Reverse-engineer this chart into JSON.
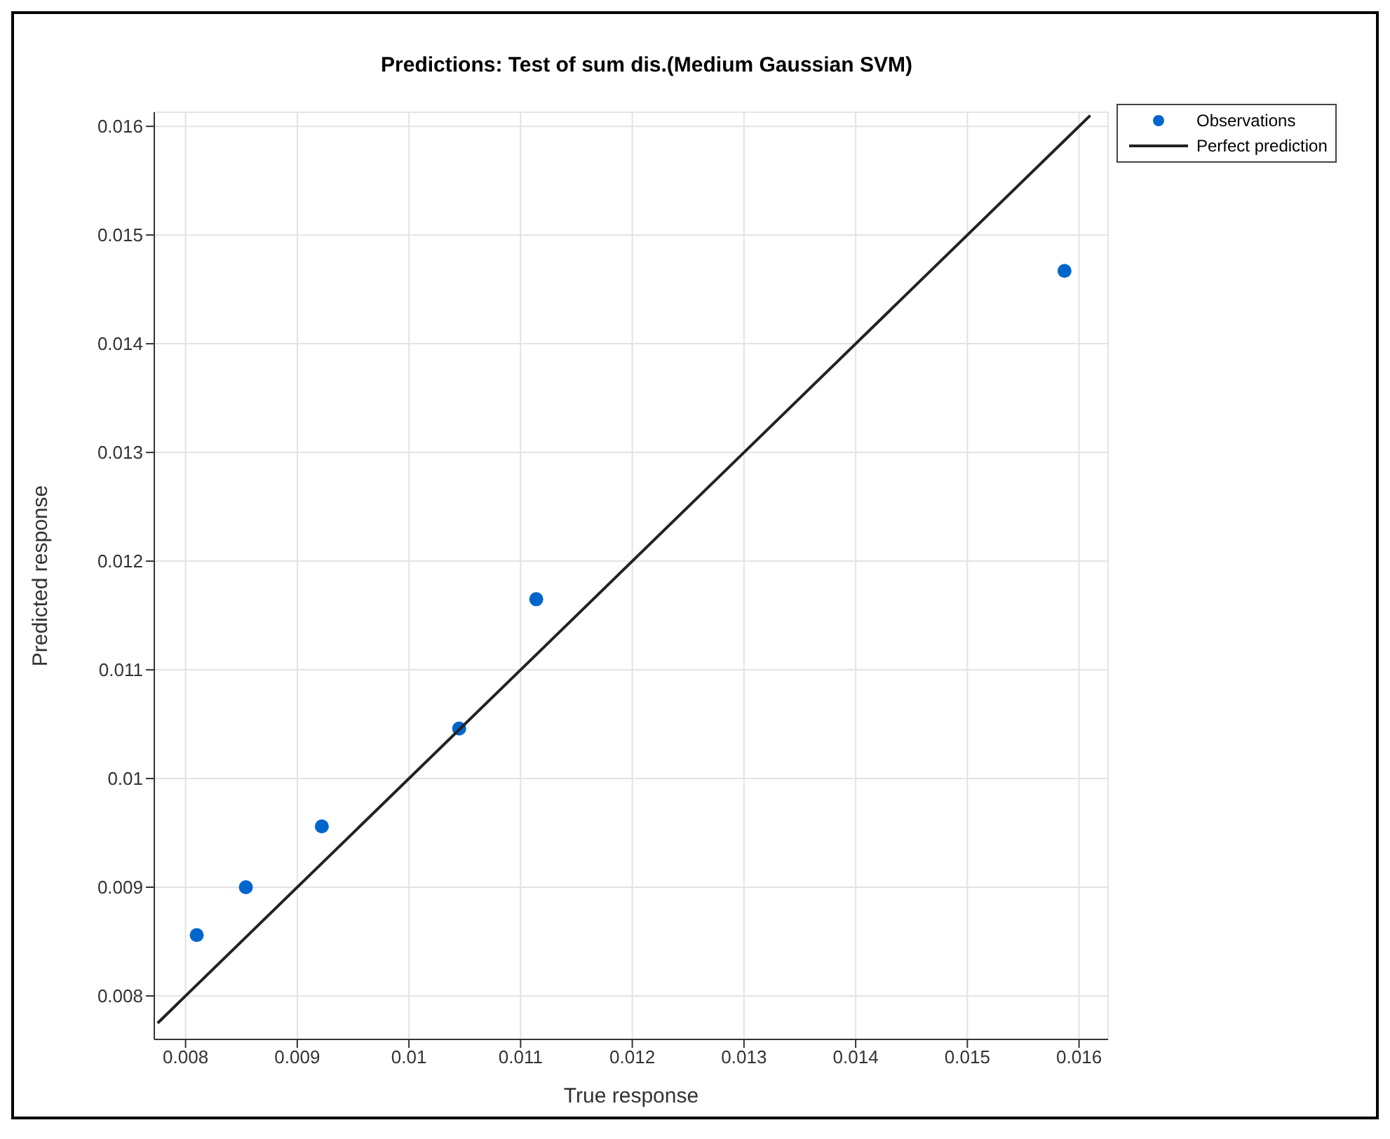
{
  "chart_data": {
    "type": "scatter",
    "title": "Predictions: Test of sum dis.(Medium Gaussian SVM)",
    "xlabel": "True response",
    "ylabel": "Predicted response",
    "series": [
      {
        "name": "Observations",
        "marker": "circle",
        "color": "#0066cc",
        "x": [
          0.0081,
          0.00854,
          0.00922,
          0.01045,
          0.01114,
          0.01587
        ],
        "values": [
          0.00856,
          0.009,
          0.00956,
          0.01046,
          0.01165,
          0.01467
        ]
      },
      {
        "name": "Perfect prediction",
        "type": "line",
        "marker": "none",
        "color": "#222222",
        "x": [
          0.00775,
          0.0161
        ],
        "values": [
          0.00775,
          0.0161
        ]
      }
    ],
    "xlim": [
      0.00772,
      0.01626
    ],
    "ylim": [
      0.0076,
      0.01613
    ],
    "xticks": [
      0.008,
      0.009,
      0.01,
      0.011,
      0.012,
      0.013,
      0.014,
      0.015,
      0.016
    ],
    "yticks": [
      0.008,
      0.009,
      0.01,
      0.011,
      0.012,
      0.013,
      0.014,
      0.015,
      0.016
    ],
    "grid": true,
    "legend": "top right",
    "line_style": "solid"
  }
}
